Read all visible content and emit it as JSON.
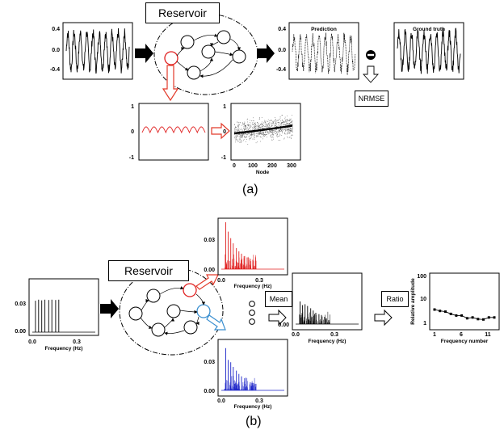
{
  "panel_a": {
    "label": "(a)",
    "reservoir_title": "Reservoir",
    "prediction_title": "Prediction",
    "ground_truth_title": "Ground truth",
    "nrmse_label": "NRMSE",
    "input_yticks": [
      "0.4",
      "0.0",
      "-0.4"
    ],
    "pred_yticks": [
      "0.4",
      "0.0",
      "-0.4"
    ],
    "node_yticks": [
      "1",
      "0",
      "-1"
    ],
    "scatter_yticks": [
      "1",
      "0",
      "-1"
    ],
    "scatter_xticks": [
      "0",
      "100",
      "200",
      "300"
    ],
    "scatter_xlabel": "Node"
  },
  "panel_b": {
    "label": "(b)",
    "reservoir_title": "Reservoir",
    "mean_label": "Mean",
    "ratio_label": "Ratio",
    "spectrum_yticks": [
      "0.03",
      "0.00"
    ],
    "spectrum_xticks": [
      "0.0",
      "0.3"
    ],
    "spectrum_xlabel": "Frequency (Hz)",
    "ratio_yticks": [
      "100",
      "10",
      "1"
    ],
    "ratio_ylabel": "Relative amplitude",
    "ratio_xticks": [
      "1",
      "6",
      "11"
    ],
    "ratio_xlabel": "Frequency number"
  },
  "colors": {
    "red": "#e02020",
    "blue": "#1a22c8",
    "arrow_red": "#e23a2a",
    "arrow_blue": "#3a8fd0",
    "black": "#000000"
  },
  "chart_data": [
    {
      "type": "line",
      "id": "ratio-plot",
      "x": [
        1,
        2,
        3,
        4,
        5,
        6,
        7,
        8,
        9,
        10,
        11,
        12
      ],
      "y": [
        3.0,
        2.6,
        2.4,
        1.9,
        1.6,
        1.6,
        1.2,
        1.3,
        1.1,
        1.05,
        1.3,
        1.3
      ],
      "xlabel": "Frequency number",
      "ylabel": "Relative amplitude",
      "yscale": "log",
      "ylim": [
        0.5,
        100
      ]
    }
  ]
}
